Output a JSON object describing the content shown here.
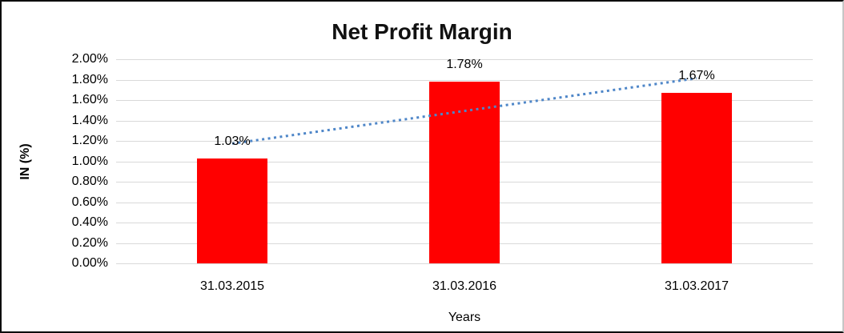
{
  "chart_data": {
    "type": "bar",
    "title": "Net Profit Margin",
    "categories": [
      "31.03.2015",
      "31.03.2016",
      "31.03.2017"
    ],
    "values": [
      1.03,
      1.78,
      1.67
    ],
    "data_labels": [
      "1.03%",
      "1.78%",
      "1.67%"
    ],
    "xlabel": "Years",
    "ylabel": "IN (%)",
    "ylim": [
      0,
      2
    ],
    "y_tick_labels": [
      "0.00%",
      "0.20%",
      "0.40%",
      "0.60%",
      "0.80%",
      "1.00%",
      "1.20%",
      "1.40%",
      "1.60%",
      "1.80%",
      "2.00%"
    ],
    "grid": true,
    "legend_position": "none",
    "colors": {
      "bar": "#FF0000",
      "gridline": "#D9D9D9",
      "trendline": "#4E86C8",
      "text": "#000000"
    },
    "trendline": {
      "type": "linear",
      "line_style": "dotted"
    }
  }
}
